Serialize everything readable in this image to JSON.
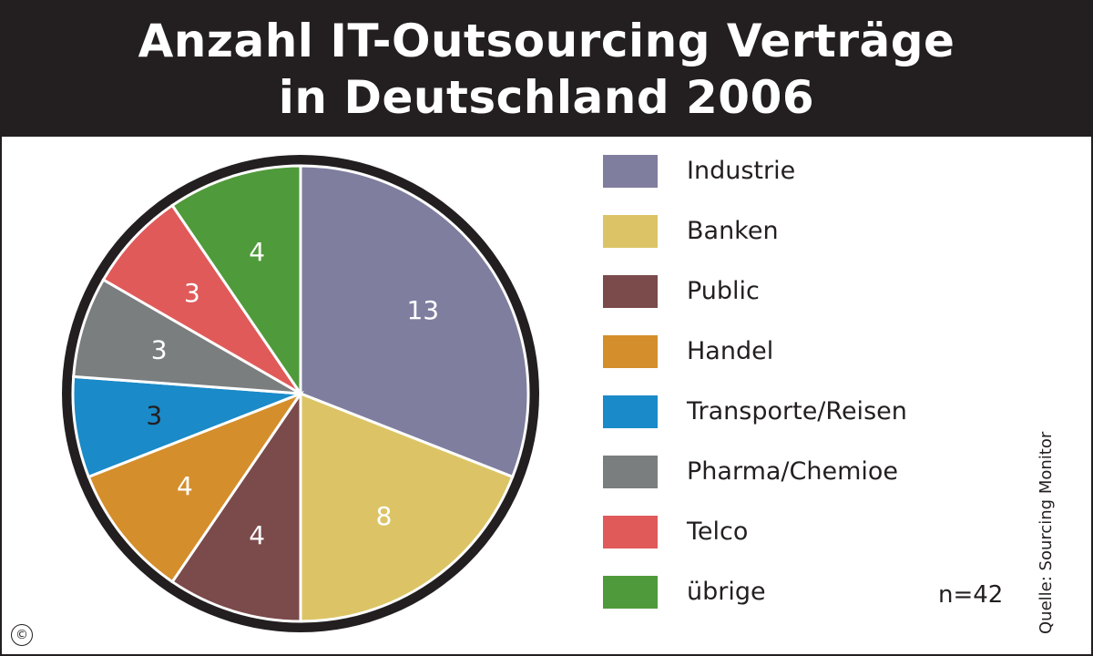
{
  "chart_data": {
    "type": "pie",
    "title": "Anzahl IT-Outsourcing Verträge in Deutschland 2006",
    "categories": [
      "Industrie",
      "Banken",
      "Public",
      "Handel",
      "Transporte/Reisen",
      "Pharma/Chemioe",
      "Telco",
      "übrige"
    ],
    "values": [
      13,
      8,
      4,
      4,
      3,
      3,
      3,
      4
    ],
    "colors": [
      "#7f7e9f",
      "#dcc466",
      "#7b4a4b",
      "#d48e2b",
      "#1a8ac8",
      "#7a7e7e",
      "#e05a5a",
      "#4f9a3a"
    ],
    "label_colors": [
      "#ffffff",
      "#ffffff",
      "#ffffff",
      "#ffffff",
      "#231f20",
      "#ffffff",
      "#ffffff",
      "#ffffff"
    ],
    "legend_position": "right",
    "note": "n=42",
    "source": "Quelle: Sourcing Monitor"
  },
  "copyright_symbol": "©"
}
